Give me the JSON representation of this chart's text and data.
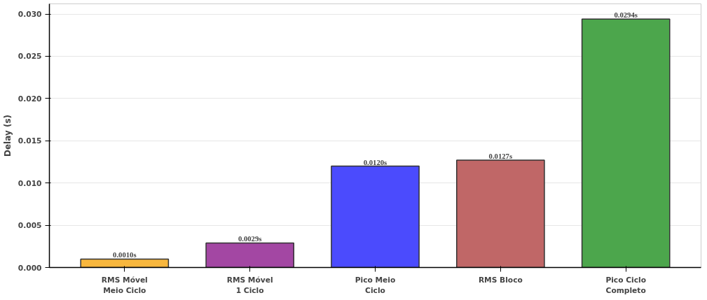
{
  "chart_data": {
    "type": "bar",
    "ylabel": "Delay (s)",
    "categories": [
      "RMS Móvel\nMeio Ciclo",
      "RMS Móvel\n1 Ciclo",
      "Pico Meio\nCiclo",
      "RMS Bloco",
      "Pico Ciclo\nCompleto"
    ],
    "values": [
      0.001,
      0.0029,
      0.012,
      0.0127,
      0.0294
    ],
    "colors": [
      "#f8b73e",
      "#a347a3",
      "#4b4bfd",
      "#c06767",
      "#4ca64c"
    ],
    "value_labels": [
      "0.0010s",
      "0.0029s",
      "0.0120s",
      "0.0127s",
      "0.0294s"
    ],
    "ylim": [
      0,
      0.0312
    ],
    "yticks": [
      {
        "value": 0,
        "label": "0.000"
      },
      {
        "value": 0.005,
        "label": "0.005"
      },
      {
        "value": 0.01,
        "label": "0.010"
      },
      {
        "value": 0.015,
        "label": "0.015"
      },
      {
        "value": 0.02,
        "label": "0.020"
      },
      {
        "value": 0.025,
        "label": "0.025"
      },
      {
        "value": 0.03,
        "label": "0.030"
      }
    ],
    "grid": "y"
  }
}
